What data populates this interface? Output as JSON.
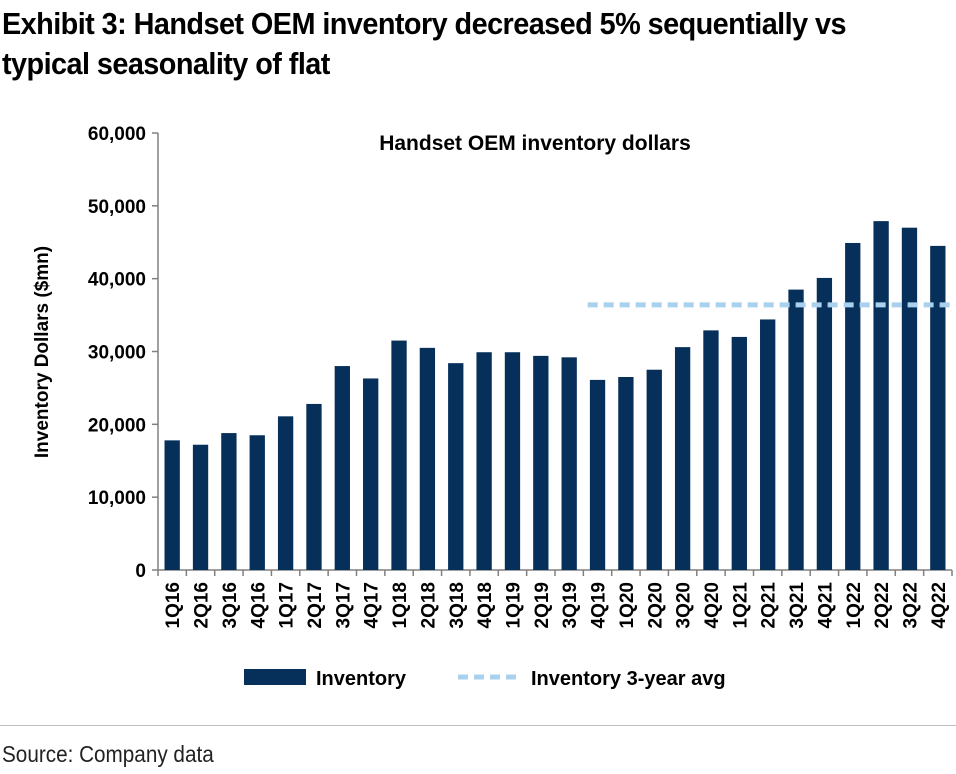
{
  "header": {
    "title": "Exhibit 3: Handset OEM inventory decreased 5% sequentially vs typical seasonality of flat"
  },
  "footer": {
    "source": "Source: Company data"
  },
  "colors": {
    "bar": "#06305A",
    "avg_line": "#A9D1EE",
    "axis": "#808080"
  },
  "chart_data": {
    "type": "bar",
    "title": "Handset OEM inventory dollars",
    "xlabel": "",
    "ylabel": "Inventory Dollars ($mn)",
    "ylim": [
      0,
      60000
    ],
    "yticks": [
      0,
      10000,
      20000,
      30000,
      40000,
      50000,
      60000
    ],
    "ytick_labels": [
      "0",
      "10,000",
      "20,000",
      "30,000",
      "40,000",
      "50,000",
      "60,000"
    ],
    "grid": false,
    "legend_position": "bottom",
    "categories": [
      "1Q16",
      "2Q16",
      "3Q16",
      "4Q16",
      "1Q17",
      "2Q17",
      "3Q17",
      "4Q17",
      "1Q18",
      "2Q18",
      "3Q18",
      "4Q18",
      "1Q19",
      "2Q19",
      "3Q19",
      "4Q19",
      "1Q20",
      "2Q20",
      "3Q20",
      "4Q20",
      "1Q21",
      "2Q21",
      "3Q21",
      "4Q21",
      "1Q22",
      "2Q22",
      "3Q22",
      "4Q22"
    ],
    "series": [
      {
        "name": "Inventory",
        "type": "bar",
        "color": "#06305A",
        "values": [
          17800,
          17200,
          18800,
          18500,
          21100,
          22800,
          28000,
          26300,
          31500,
          30500,
          28400,
          29900,
          29900,
          29400,
          29200,
          26100,
          26500,
          27500,
          30600,
          32900,
          32000,
          34400,
          38500,
          40100,
          44900,
          47900,
          47000,
          44500
        ]
      },
      {
        "name": "Inventory 3-year avg",
        "type": "line",
        "style": "dashed",
        "color": "#A9D1EE",
        "x": [
          "4Q19",
          "4Q22"
        ],
        "values": [
          36400,
          36400
        ]
      }
    ]
  }
}
